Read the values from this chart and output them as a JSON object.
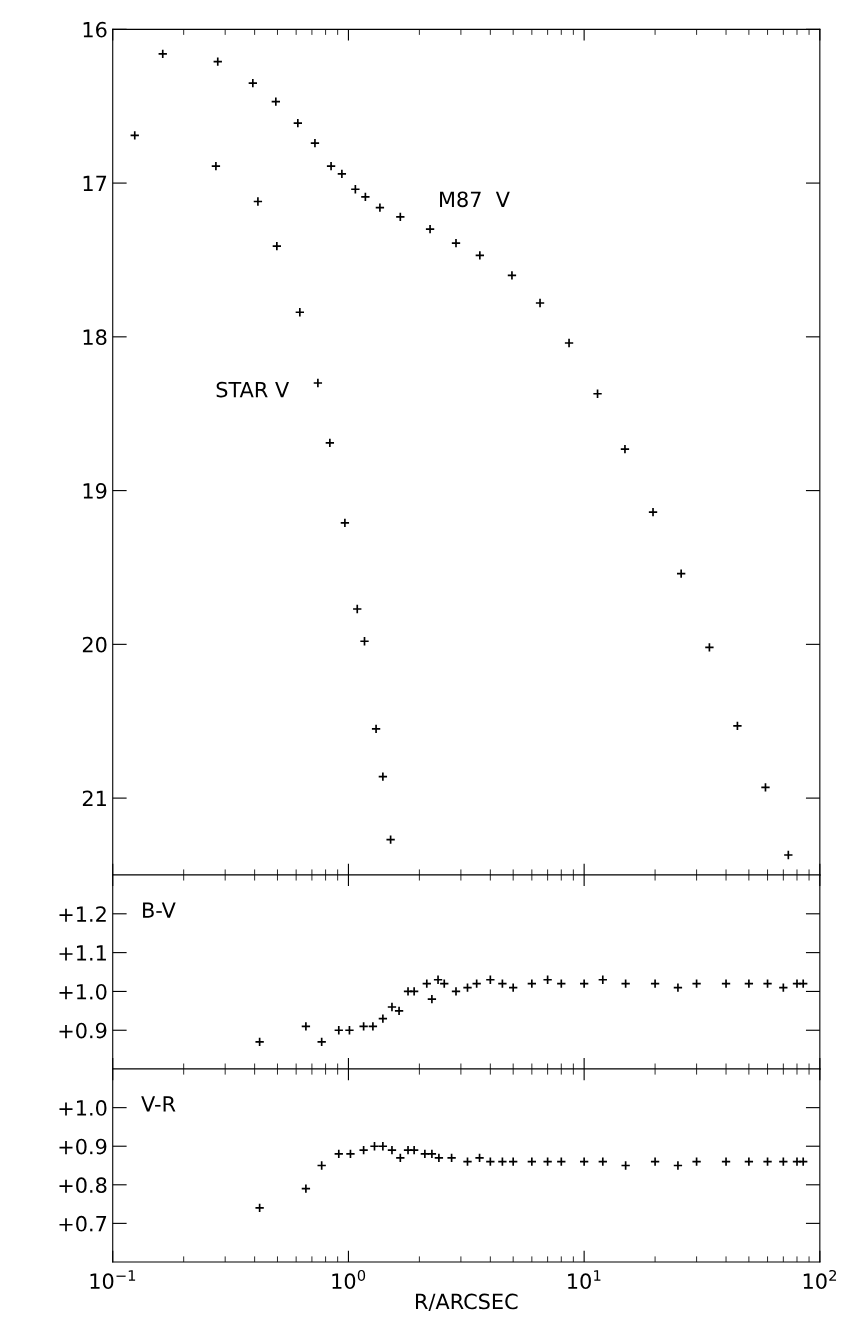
{
  "chart_data": [
    {
      "type": "scatter",
      "log": "x",
      "marker": "cross",
      "grid": false,
      "tick_labels": "y",
      "xlim": [
        0.1,
        100
      ],
      "ylim": [
        21.5,
        16
      ],
      "yticks": [
        16,
        17,
        18,
        19,
        20,
        21
      ],
      "series": [
        {
          "name": "M87  V",
          "color": "#000000",
          "x": [
            0.163,
            0.279,
            0.393,
            0.492,
            0.61,
            0.721,
            0.844,
            0.938,
            1.07,
            1.18,
            1.36,
            1.66,
            2.22,
            2.86,
            3.61,
            4.94,
            6.5,
            8.63,
            11.4,
            14.9,
            19.6,
            25.8,
            34.0,
            44.7,
            58.8,
            73.5
          ],
          "values": [
            16.16,
            16.21,
            16.35,
            16.47,
            16.61,
            16.74,
            16.89,
            16.94,
            17.04,
            17.09,
            17.16,
            17.22,
            17.3,
            17.39,
            17.47,
            17.6,
            17.78,
            18.04,
            18.37,
            18.73,
            19.14,
            19.54,
            20.02,
            20.53,
            20.93,
            21.37
          ]
        },
        {
          "name": "STAR V",
          "color": "#000000",
          "x": [
            0.124,
            0.274,
            0.413,
            0.497,
            0.622,
            0.742,
            0.834,
            0.966,
            1.09,
            1.17,
            1.31,
            1.4,
            1.51
          ],
          "values": [
            16.69,
            16.89,
            17.12,
            17.41,
            17.84,
            18.3,
            18.69,
            19.21,
            19.77,
            19.98,
            20.55,
            20.86,
            21.27
          ]
        }
      ]
    },
    {
      "type": "scatter",
      "log": "x",
      "marker": "cross",
      "grid": false,
      "tick_labels": "y",
      "xlim": [
        0.1,
        100
      ],
      "ylim": [
        0.8,
        1.3
      ],
      "yticks": [
        {
          "value": 0.9,
          "label": "+0.9"
        },
        {
          "value": 1.0,
          "label": "+1.0"
        },
        {
          "value": 1.1,
          "label": "+1.1"
        },
        {
          "value": 1.2,
          "label": "+1.2"
        }
      ],
      "series": [
        {
          "name": "B-V",
          "color": "#000000",
          "x": [
            0.42,
            0.66,
            0.77,
            0.91,
            1.01,
            1.16,
            1.27,
            1.4,
            1.53,
            1.64,
            1.79,
            1.9,
            2.15,
            2.26,
            2.4,
            2.55,
            2.86,
            3.2,
            3.5,
            4.0,
            4.5,
            5.0,
            6.0,
            7.0,
            8.0,
            10.0,
            12.0,
            15.0,
            20.0,
            25.0,
            30.0,
            40.0,
            50.0,
            60.0,
            70.0,
            80.0,
            85.0
          ],
          "values": [
            0.87,
            0.91,
            0.87,
            0.9,
            0.9,
            0.91,
            0.91,
            0.93,
            0.96,
            0.95,
            1.0,
            1.0,
            1.02,
            0.98,
            1.03,
            1.02,
            1.0,
            1.01,
            1.02,
            1.03,
            1.02,
            1.01,
            1.02,
            1.03,
            1.02,
            1.02,
            1.03,
            1.02,
            1.02,
            1.01,
            1.02,
            1.02,
            1.02,
            1.02,
            1.01,
            1.02,
            1.02
          ]
        }
      ]
    },
    {
      "type": "scatter",
      "log": "x",
      "marker": "cross",
      "grid": false,
      "xlabel": "R/ARCSEC",
      "xlim": [
        0.1,
        100
      ],
      "ylim": [
        0.6,
        1.1
      ],
      "xticks": [
        {
          "value": 0.1,
          "label": "10$^{−1}$"
        },
        {
          "value": 1,
          "label": "10$^{0}$"
        },
        {
          "value": 10,
          "label": "10$^{1}$"
        },
        {
          "value": 100,
          "label": "10$^{2}$"
        }
      ],
      "yticks": [
        {
          "value": 0.7,
          "label": "+0.7"
        },
        {
          "value": 0.8,
          "label": "+0.8"
        },
        {
          "value": 0.9,
          "label": "+0.9"
        },
        {
          "value": 1.0,
          "label": "+1.0"
        }
      ],
      "series": [
        {
          "name": "V-R",
          "color": "#000000",
          "x": [
            0.42,
            0.66,
            0.77,
            0.91,
            1.02,
            1.16,
            1.29,
            1.4,
            1.53,
            1.66,
            1.79,
            1.9,
            2.11,
            2.26,
            2.42,
            2.74,
            3.2,
            3.6,
            4.0,
            4.5,
            5.0,
            6.0,
            7.0,
            8.0,
            10.0,
            12.0,
            15.0,
            20.0,
            25.0,
            30.0,
            40.0,
            50.0,
            60.0,
            70.0,
            80.0,
            85.0
          ],
          "values": [
            0.74,
            0.79,
            0.85,
            0.88,
            0.88,
            0.89,
            0.9,
            0.9,
            0.89,
            0.87,
            0.89,
            0.89,
            0.88,
            0.88,
            0.87,
            0.87,
            0.86,
            0.87,
            0.86,
            0.86,
            0.86,
            0.86,
            0.86,
            0.86,
            0.86,
            0.86,
            0.85,
            0.86,
            0.85,
            0.86,
            0.86,
            0.86,
            0.86,
            0.86,
            0.86,
            0.86
          ]
        }
      ]
    }
  ]
}
